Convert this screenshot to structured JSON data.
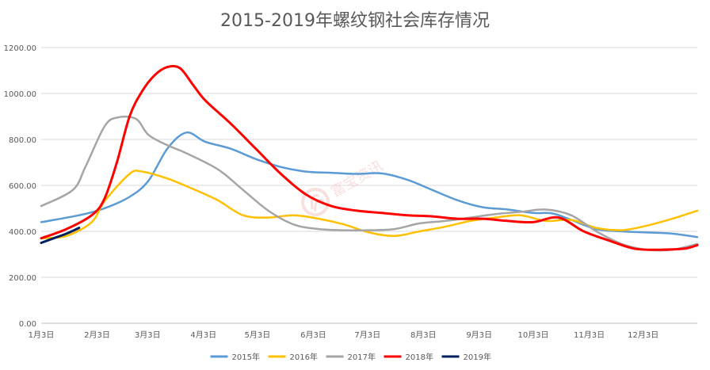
{
  "chart_data": {
    "type": "line",
    "title": "2015-2019年螺纹钢社会库存情况",
    "xlabel": "",
    "ylabel": "",
    "ylim": [
      0,
      1200
    ],
    "yticks": [
      "0.00",
      "200.00",
      "400.00",
      "600.00",
      "800.00",
      "1000.00",
      "1200.00"
    ],
    "x_domain": [
      1,
      53
    ],
    "x_ticks": [
      {
        "label": "1月3日",
        "x": 1
      },
      {
        "label": "2月3日",
        "x": 5.43
      },
      {
        "label": "3月3日",
        "x": 9.43
      },
      {
        "label": "4月3日",
        "x": 13.86
      },
      {
        "label": "5月3日",
        "x": 18.14
      },
      {
        "label": "6月3日",
        "x": 22.57
      },
      {
        "label": "7月3日",
        "x": 26.86
      },
      {
        "label": "8月3日",
        "x": 31.29
      },
      {
        "label": "9月3日",
        "x": 35.71
      },
      {
        "label": "10月3日",
        "x": 40
      },
      {
        "label": "11月3日",
        "x": 44.43
      },
      {
        "label": "12月3日",
        "x": 48.71
      }
    ],
    "grid": true,
    "legend_position": "bottom",
    "series": [
      {
        "name": "2015年",
        "color": "#5b9bd5",
        "x": [
          1,
          4,
          6,
          8,
          9.5,
          11,
          12.5,
          14,
          16,
          18,
          20,
          22,
          24,
          26,
          28,
          30,
          32,
          34,
          36,
          38,
          40,
          41.5,
          43,
          45,
          47,
          49,
          51,
          53
        ],
        "y": [
          440,
          470,
          500,
          550,
          620,
          760,
          830,
          790,
          760,
          715,
          680,
          660,
          655,
          650,
          652,
          625,
          580,
          535,
          505,
          495,
          480,
          478,
          450,
          410,
          400,
          395,
          390,
          375
        ]
      },
      {
        "name": "2016年",
        "color": "#ffc000",
        "x": [
          1,
          3,
          5,
          6,
          8,
          9,
          11,
          13,
          15,
          17,
          19,
          21,
          23,
          25,
          27,
          29,
          31,
          33,
          35,
          37,
          39,
          41,
          43,
          45,
          47,
          49,
          51,
          53
        ],
        "y": [
          370,
          380,
          440,
          530,
          650,
          660,
          630,
          585,
          535,
          470,
          460,
          470,
          455,
          430,
          395,
          380,
          400,
          420,
          445,
          460,
          470,
          445,
          450,
          415,
          405,
          425,
          455,
          490
        ]
      },
      {
        "name": "2017年",
        "color": "#a5a5a5",
        "x": [
          1,
          3.5,
          4.5,
          6,
          7,
          8.5,
          9.5,
          11,
          12.5,
          15,
          17,
          19,
          21,
          23,
          25,
          27,
          29,
          31,
          33,
          35,
          37,
          39,
          41,
          43,
          45,
          47,
          49,
          51,
          53
        ],
        "y": [
          510,
          580,
          680,
          855,
          895,
          890,
          820,
          775,
          740,
          670,
          580,
          490,
          430,
          410,
          405,
          405,
          410,
          435,
          445,
          460,
          475,
          485,
          495,
          470,
          400,
          345,
          320,
          320,
          345
        ]
      },
      {
        "name": "2018年",
        "color": "#ff0000",
        "x": [
          1,
          3,
          5,
          6,
          7,
          8,
          9,
          10,
          11,
          12,
          13,
          14,
          16,
          18,
          20,
          22,
          24,
          26,
          28,
          30,
          32,
          34,
          36,
          38,
          40,
          42,
          44,
          46,
          48,
          50,
          52,
          53
        ],
        "y": [
          370,
          410,
          470,
          540,
          700,
          900,
          1010,
          1080,
          1115,
          1110,
          1040,
          970,
          870,
          760,
          650,
          560,
          510,
          490,
          480,
          470,
          465,
          455,
          455,
          445,
          440,
          460,
          400,
          360,
          325,
          320,
          325,
          340
        ]
      },
      {
        "name": "2019年",
        "color": "#002060",
        "x": [
          1,
          2,
          3,
          4
        ],
        "y": [
          350,
          370,
          390,
          415
        ]
      }
    ]
  }
}
